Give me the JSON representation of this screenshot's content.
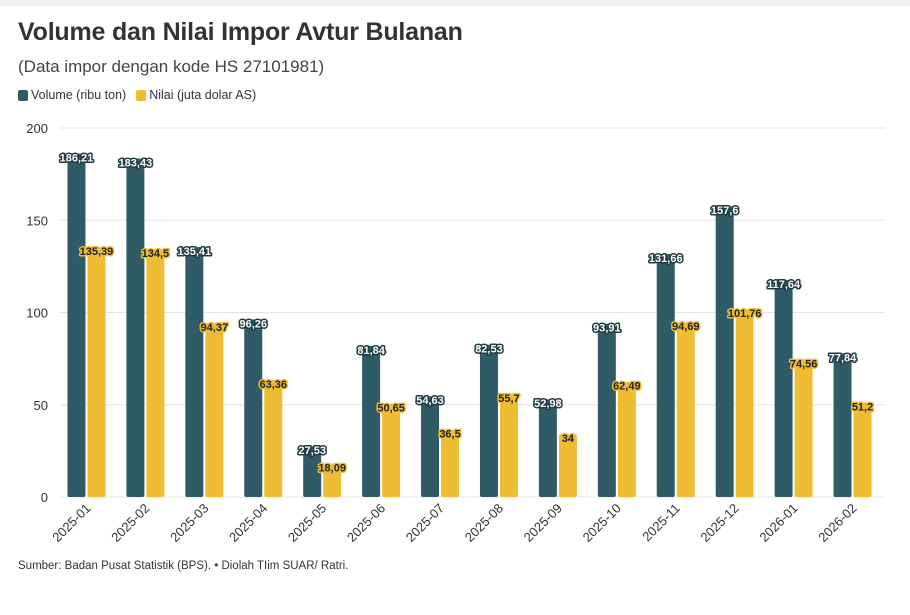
{
  "title": "Volume dan Nilai Impor Avtur Bulanan",
  "subtitle": "(Data impor dengan kode HS 27101981)",
  "source": "Sumber: Badan Pusat Statistik (BPS). • Diolah TIim SUAR/ Ratri.",
  "colors": {
    "volume": "#2f5b66",
    "nilai": "#efbd33",
    "grid": "#e5e5e5",
    "axis_text": "#333333"
  },
  "chart_data": {
    "type": "bar",
    "categories": [
      "2025-01",
      "2025-02",
      "2025-03",
      "2025-04",
      "2025-05",
      "2025-06",
      "2025-07",
      "2025-08",
      "2025-09",
      "2025-10",
      "2025-11",
      "2025-12",
      "2026-01",
      "2026-02"
    ],
    "series": [
      {
        "name": "Volume (ribu ton)",
        "values": [
          186.21,
          183.43,
          135.41,
          96.26,
          27.53,
          81.84,
          54.63,
          82.53,
          52.98,
          93.91,
          131.66,
          157.6,
          117.64,
          77.84
        ],
        "labels": [
          "186,21",
          "183,43",
          "135,41",
          "96,26",
          "27,53",
          "81,84",
          "54,63",
          "82,53",
          "52,98",
          "93,91",
          "131,66",
          "157,6",
          "117,64",
          "77,84"
        ]
      },
      {
        "name": "Nilai (juta dolar AS)",
        "values": [
          135.39,
          134.5,
          94.37,
          63.36,
          18.09,
          50.65,
          36.5,
          55.7,
          34,
          62.49,
          94.69,
          101.76,
          74.56,
          51.2
        ],
        "labels": [
          "135,39",
          "134,5",
          "94,37",
          "63,36",
          "18,09",
          "50,65",
          "36,5",
          "55,7",
          "34",
          "62,49",
          "94,69",
          "101,76",
          "74,56",
          "51,2"
        ]
      }
    ],
    "ylim": [
      0,
      200
    ],
    "yticks": [
      0,
      50,
      100,
      150,
      200
    ],
    "grid": true,
    "legend_position": "top-left"
  }
}
